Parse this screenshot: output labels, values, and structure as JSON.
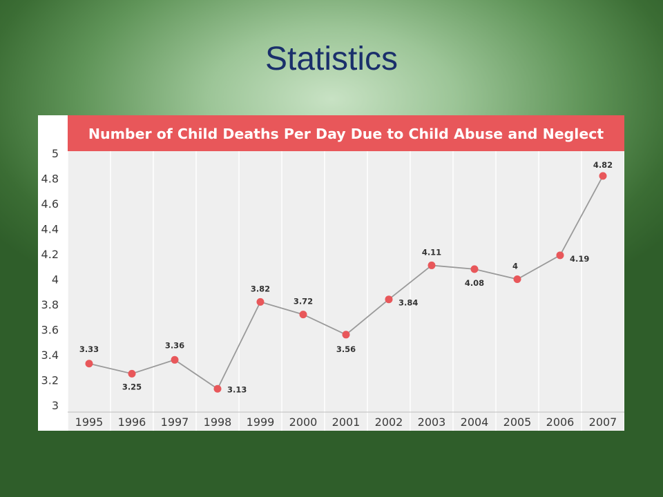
{
  "slide": {
    "title": "Statistics"
  },
  "colors": {
    "title_text": "#1a2f6b",
    "banner": "#e8575a",
    "plot_bg": "#efefef",
    "line": "#9a9a9a",
    "marker": "#e8575a"
  },
  "chart_data": {
    "type": "line",
    "title": "Number of Child Deaths Per Day Due to Child Abuse and Neglect",
    "xlabel": "",
    "ylabel": "",
    "categories": [
      "1995",
      "1996",
      "1997",
      "1998",
      "1999",
      "2000",
      "2001",
      "2002",
      "2003",
      "2004",
      "2005",
      "2006",
      "2007"
    ],
    "series": [
      {
        "values": [
          3.33,
          3.25,
          3.36,
          3.13,
          3.82,
          3.72,
          3.56,
          3.84,
          4.11,
          4.08,
          4,
          4.19,
          4.82
        ],
        "labels": [
          "3.33",
          "3.25",
          "3.36",
          "3.13",
          "3.82",
          "3.72",
          "3.56",
          "3.84",
          "4.11",
          "4.08",
          "4",
          "4.19",
          "4.82"
        ]
      }
    ],
    "ylim": [
      3,
      5
    ],
    "yticks": [
      "3",
      "3.2",
      "3.4",
      "3.6",
      "3.8",
      "4",
      "4.2",
      "4.4",
      "4.6",
      "4.8",
      "5"
    ],
    "grid": "vertical",
    "legend": "none"
  }
}
